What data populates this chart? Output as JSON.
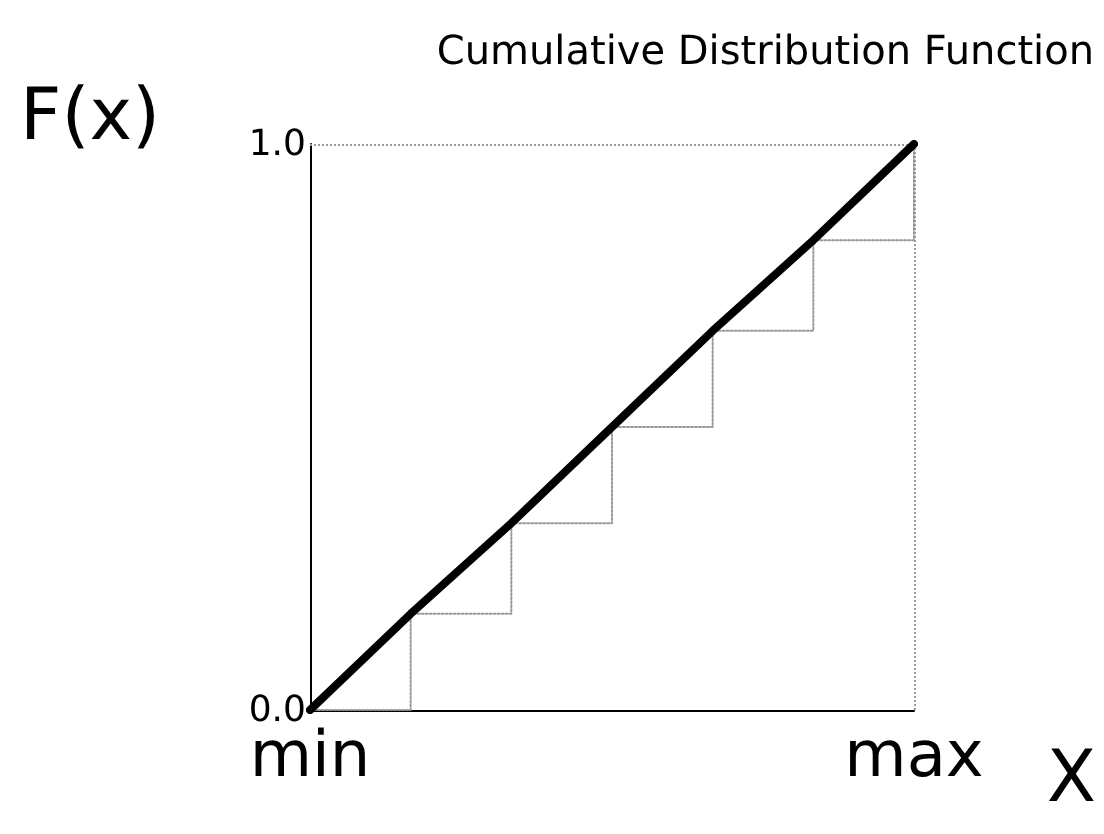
{
  "chart_data": {
    "type": "line",
    "title": "Cumulative Distribution Function",
    "xlabel": "X",
    "ylabel": "F(x)",
    "categories": [
      "min",
      null,
      null,
      null,
      null,
      null,
      "max"
    ],
    "series": [
      {
        "color": "#000000",
        "values": [
          0,
          0.17,
          0.33,
          0.5,
          0.67,
          0.83,
          1
        ]
      },
      {
        "type": "step",
        "color": "#999999",
        "line_style": "dotted",
        "values": [
          0,
          0.17,
          0.33,
          0.5,
          0.67,
          0.83,
          1
        ]
      }
    ],
    "ylim": [
      0,
      1
    ],
    "yticks": [
      {
        "value": 0,
        "label": "0.0"
      },
      {
        "value": 1,
        "label": "1.0"
      }
    ],
    "ref_lines": [
      {
        "axis": "y",
        "value": 1,
        "color": "#999999",
        "line_style": "dotted"
      },
      {
        "axis": "x",
        "value": "max",
        "color": "#999999",
        "line_style": "dotted"
      }
    ],
    "grid": false,
    "marker": "none",
    "line_style": "solid"
  }
}
